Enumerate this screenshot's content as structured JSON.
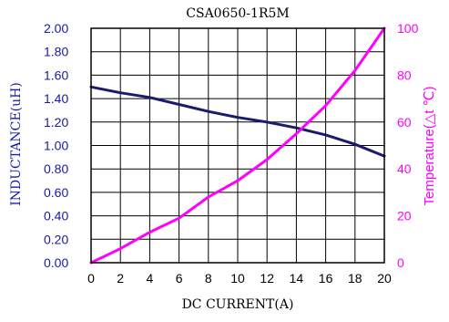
{
  "chart_data": {
    "type": "line",
    "title": "CSA0650-1R5M",
    "xlabel": "DC CURRENT(A)",
    "ylabel_left": "INDUCTANCE(uH)",
    "ylabel_right": "Temperature(△t ℃)",
    "xlim": [
      0,
      20
    ],
    "ylim_left": [
      0,
      2
    ],
    "ylim_right": [
      0,
      100
    ],
    "x_ticks": [
      "0",
      "2",
      "4",
      "6",
      "8",
      "10",
      "12",
      "14",
      "16",
      "18",
      "20"
    ],
    "y_left_ticks": [
      "0.00",
      "0.20",
      "0.40",
      "0.60",
      "0.80",
      "1.00",
      "1.20",
      "1.40",
      "1.60",
      "1.80",
      "2.00"
    ],
    "y_right_ticks": [
      "0",
      "20",
      "40",
      "60",
      "80",
      "100"
    ],
    "grid": true,
    "series": [
      {
        "axis": "left",
        "color": "#1a1a6e",
        "x": [
          0,
          2,
          4,
          6,
          8,
          10,
          12,
          14,
          16,
          18,
          20
        ],
        "values": [
          1.5,
          1.45,
          1.41,
          1.35,
          1.29,
          1.24,
          1.2,
          1.15,
          1.09,
          1.01,
          0.91
        ]
      },
      {
        "axis": "right",
        "color": "#ff00ff",
        "x": [
          0,
          2,
          4,
          6,
          8,
          10,
          12,
          14,
          16,
          18,
          20
        ],
        "values": [
          0,
          6,
          13,
          19,
          28,
          35,
          44,
          55,
          67,
          82,
          100
        ]
      }
    ]
  }
}
